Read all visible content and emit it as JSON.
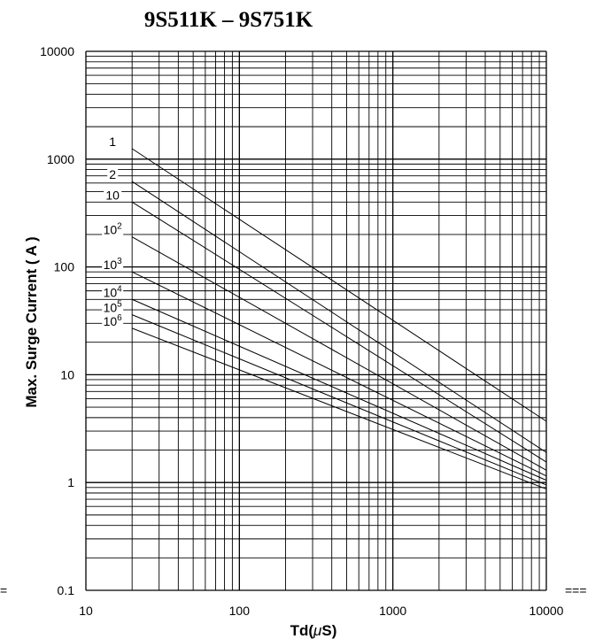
{
  "chart_data": {
    "type": "line",
    "title": "9S511K – 9S751K",
    "xlabel_prefix": "Td(",
    "xlabel_mu": "μ",
    "xlabel_suffix": "S)",
    "ylabel": "Max. Surge Current ( A )",
    "x_scale": "log",
    "y_scale": "log",
    "xlim": [
      10,
      10000
    ],
    "ylim": [
      0.1,
      10000
    ],
    "x_ticks": [
      "10",
      "100",
      "1000",
      "10000"
    ],
    "y_ticks": [
      "0.1",
      "1",
      "10",
      "100",
      "1000",
      "10000"
    ],
    "grid": true,
    "series": [
      {
        "name": "1",
        "label_base": "1",
        "label_exp": "",
        "points": [
          [
            20,
            1250
          ],
          [
            10000,
            3.7
          ]
        ]
      },
      {
        "name": "2",
        "label_base": "2",
        "label_exp": "",
        "points": [
          [
            20,
            620
          ],
          [
            10000,
            1.9
          ]
        ]
      },
      {
        "name": "10",
        "label_base": "10",
        "label_exp": "",
        "points": [
          [
            20,
            400
          ],
          [
            10000,
            1.55
          ]
        ]
      },
      {
        "name": "10^2",
        "label_base": "10",
        "label_exp": "2",
        "points": [
          [
            20,
            190
          ],
          [
            10000,
            1.3
          ]
        ]
      },
      {
        "name": "10^3",
        "label_base": "10",
        "label_exp": "3",
        "points": [
          [
            20,
            90
          ],
          [
            10000,
            1.15
          ]
        ]
      },
      {
        "name": "10^4",
        "label_base": "10",
        "label_exp": "4",
        "points": [
          [
            20,
            50
          ],
          [
            10000,
            1.05
          ]
        ]
      },
      {
        "name": "10^5",
        "label_base": "10",
        "label_exp": "5",
        "points": [
          [
            20,
            36
          ],
          [
            10000,
            0.95
          ]
        ]
      },
      {
        "name": "10^6",
        "label_base": "10",
        "label_exp": "6",
        "points": [
          [
            20,
            27
          ],
          [
            10000,
            0.87
          ]
        ]
      }
    ]
  },
  "edge_marks": {
    "left": "=",
    "right": "==="
  }
}
